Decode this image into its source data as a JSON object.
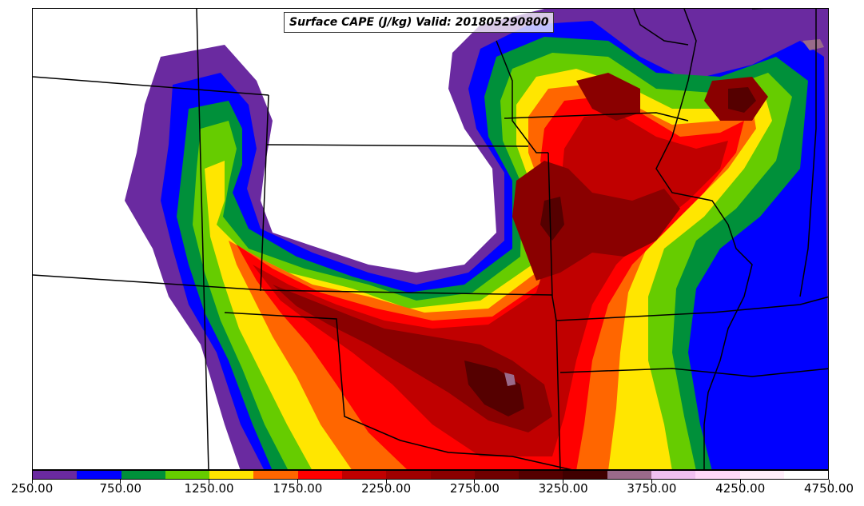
{
  "title": "Surface CAPE (J/kg) Valid: 201805290800",
  "colorbar": {
    "min": 250,
    "max": 4750,
    "step": 250,
    "colors": [
      "#6a2aa0",
      "#0000ff",
      "#00903a",
      "#66cc00",
      "#ffe600",
      "#ff6600",
      "#ff0000",
      "#c00000",
      "#a00000",
      "#8a0000",
      "#700000",
      "#550000",
      "#400000",
      "#9a6a8a",
      "#f0c0f0",
      "#ffd8f8",
      "#ffeefa",
      "#ffffff"
    ],
    "tick_labels": [
      "250.00",
      "750.00",
      "1250.00",
      "1750.00",
      "2250.00",
      "2750.00",
      "3250.00",
      "3750.00",
      "4250.00",
      "4750.00"
    ]
  }
}
